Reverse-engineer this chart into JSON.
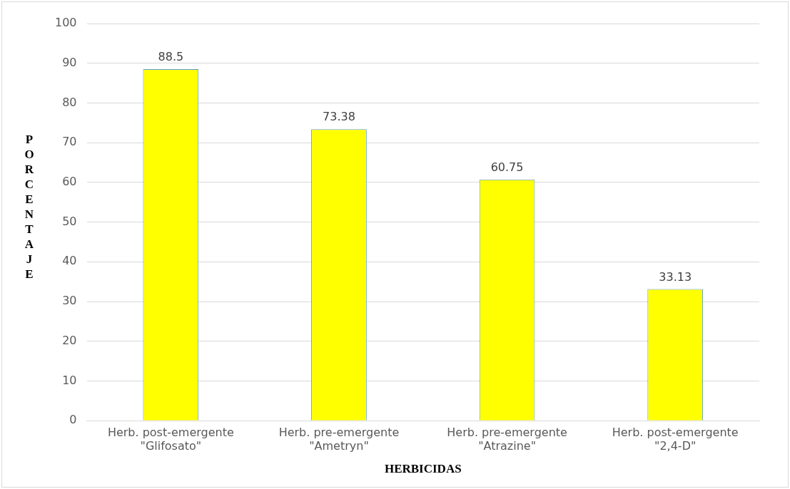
{
  "chart_data": {
    "type": "bar",
    "xlabel": "HERBICIDAS",
    "ylabel": "PORCENTAJE",
    "categories": [
      "Herb. post-emergente\n\"Glifosato\"",
      "Herb. pre-emergente\n\"Ametryn\"",
      "Herb. pre-emergente\n\"Atrazine\"",
      "Herb. post-emergente\n\"2,4-D\""
    ],
    "values": [
      88.5,
      73.38,
      60.75,
      33.13
    ],
    "color": "#ffff00",
    "ylim": [
      0,
      100
    ],
    "yticks": [
      0,
      10,
      20,
      30,
      40,
      50,
      60,
      70,
      80,
      90,
      100
    ],
    "grid": "y",
    "data_labels": true,
    "legend": false
  }
}
